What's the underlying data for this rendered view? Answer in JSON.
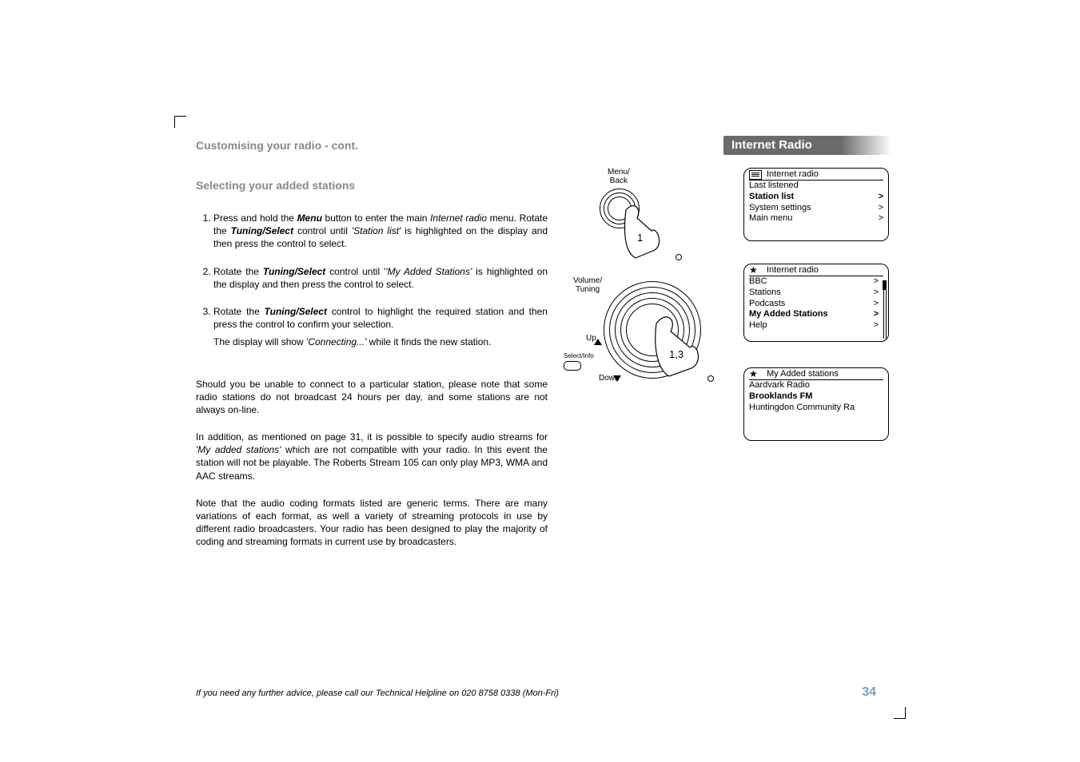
{
  "header": {
    "breadcrumb": "Customising your radio - cont.",
    "ribbon": "Internet Radio",
    "subheading": "Selecting your added stations"
  },
  "steps": {
    "s1_a": "Press and hold the ",
    "s1_b": "Menu",
    "s1_c": " button to enter the main ",
    "s1_d": "Internet radio",
    "s1_e": " menu. Rotate the ",
    "s1_f": "Tuning/Select",
    "s1_g": " control until ",
    "s1_h": "'Station list'",
    "s1_i": " is highlighted on the display and then press the control to select.",
    "s2_a": "Rotate the ",
    "s2_b": "Tuning/Select",
    "s2_c": " control until '",
    "s2_d": "'My Added Stations'",
    "s2_e": " is highlighted on the display and then press the control to select.",
    "s3_a": "Rotate the ",
    "s3_b": "Tuning/Select",
    "s3_c": " control to highlight the required station and then press the control to confirm your selection.",
    "s3_note_a": "The display will show ",
    "s3_note_b": "'Connecting...'",
    "s3_note_c": " while it finds the new station."
  },
  "paras": {
    "p1": "Should you be unable to connect to a particular station, please note that some radio stations do not broadcast 24 hours per day, and some stations are not always on-line.",
    "p2_a": "In addition, as mentioned on page 31, it is possible to specify audio streams for ",
    "p2_b": "'My added stations'",
    "p2_c": " which are not compatible with your radio. In this event the station will not be playable. The Roberts Stream 105 can only play MP3, WMA and AAC streams.",
    "p3": "Note that the audio coding formats listed are generic terms. There are many variations of each format, as well a variety of streaming protocols in use by different radio broadcasters. Your radio has been designed to play the majority of coding and streaming formats in current use by broadcasters."
  },
  "knob1": {
    "label_line1": "Menu/",
    "label_line2": "Back",
    "num": "1"
  },
  "knob2": {
    "label_vol": "Volume/\nTuning",
    "label_up": "Up",
    "label_down": "Down",
    "label_select": "Select/Info",
    "num": "1,3"
  },
  "lcd1": {
    "title": "Internet radio",
    "items": [
      {
        "label": "Last listened",
        "bold": false,
        "chev": ""
      },
      {
        "label": "Station list",
        "bold": true,
        "chev": ">"
      },
      {
        "label": "System settings",
        "bold": false,
        "chev": ">"
      },
      {
        "label": "Main menu",
        "bold": false,
        "chev": ">"
      }
    ]
  },
  "lcd2": {
    "title": "Internet radio",
    "items": [
      {
        "label": "BBC",
        "bold": false,
        "chev": ">"
      },
      {
        "label": "Stations",
        "bold": false,
        "chev": ">"
      },
      {
        "label": "Podcasts",
        "bold": false,
        "chev": ">"
      },
      {
        "label": "My Added Stations",
        "bold": true,
        "chev": ">"
      },
      {
        "label": "Help",
        "bold": false,
        "chev": ">"
      }
    ]
  },
  "lcd3": {
    "title": "My Added stations",
    "items": [
      {
        "label": "Aardvark Radio",
        "bold": false,
        "chev": ""
      },
      {
        "label": "Brooklands FM",
        "bold": true,
        "chev": ""
      },
      {
        "label": "Huntingdon Community Ra",
        "bold": false,
        "chev": ""
      }
    ]
  },
  "footer": "If you need any further advice, please call our Technical Helpline on 020 8758 0338 (Mon-Fri)",
  "page_number": "34",
  "colors": {
    "muted": "#888888",
    "pagenum": "#6fa0c9",
    "ribbon_gray": "#6b6b6b"
  }
}
